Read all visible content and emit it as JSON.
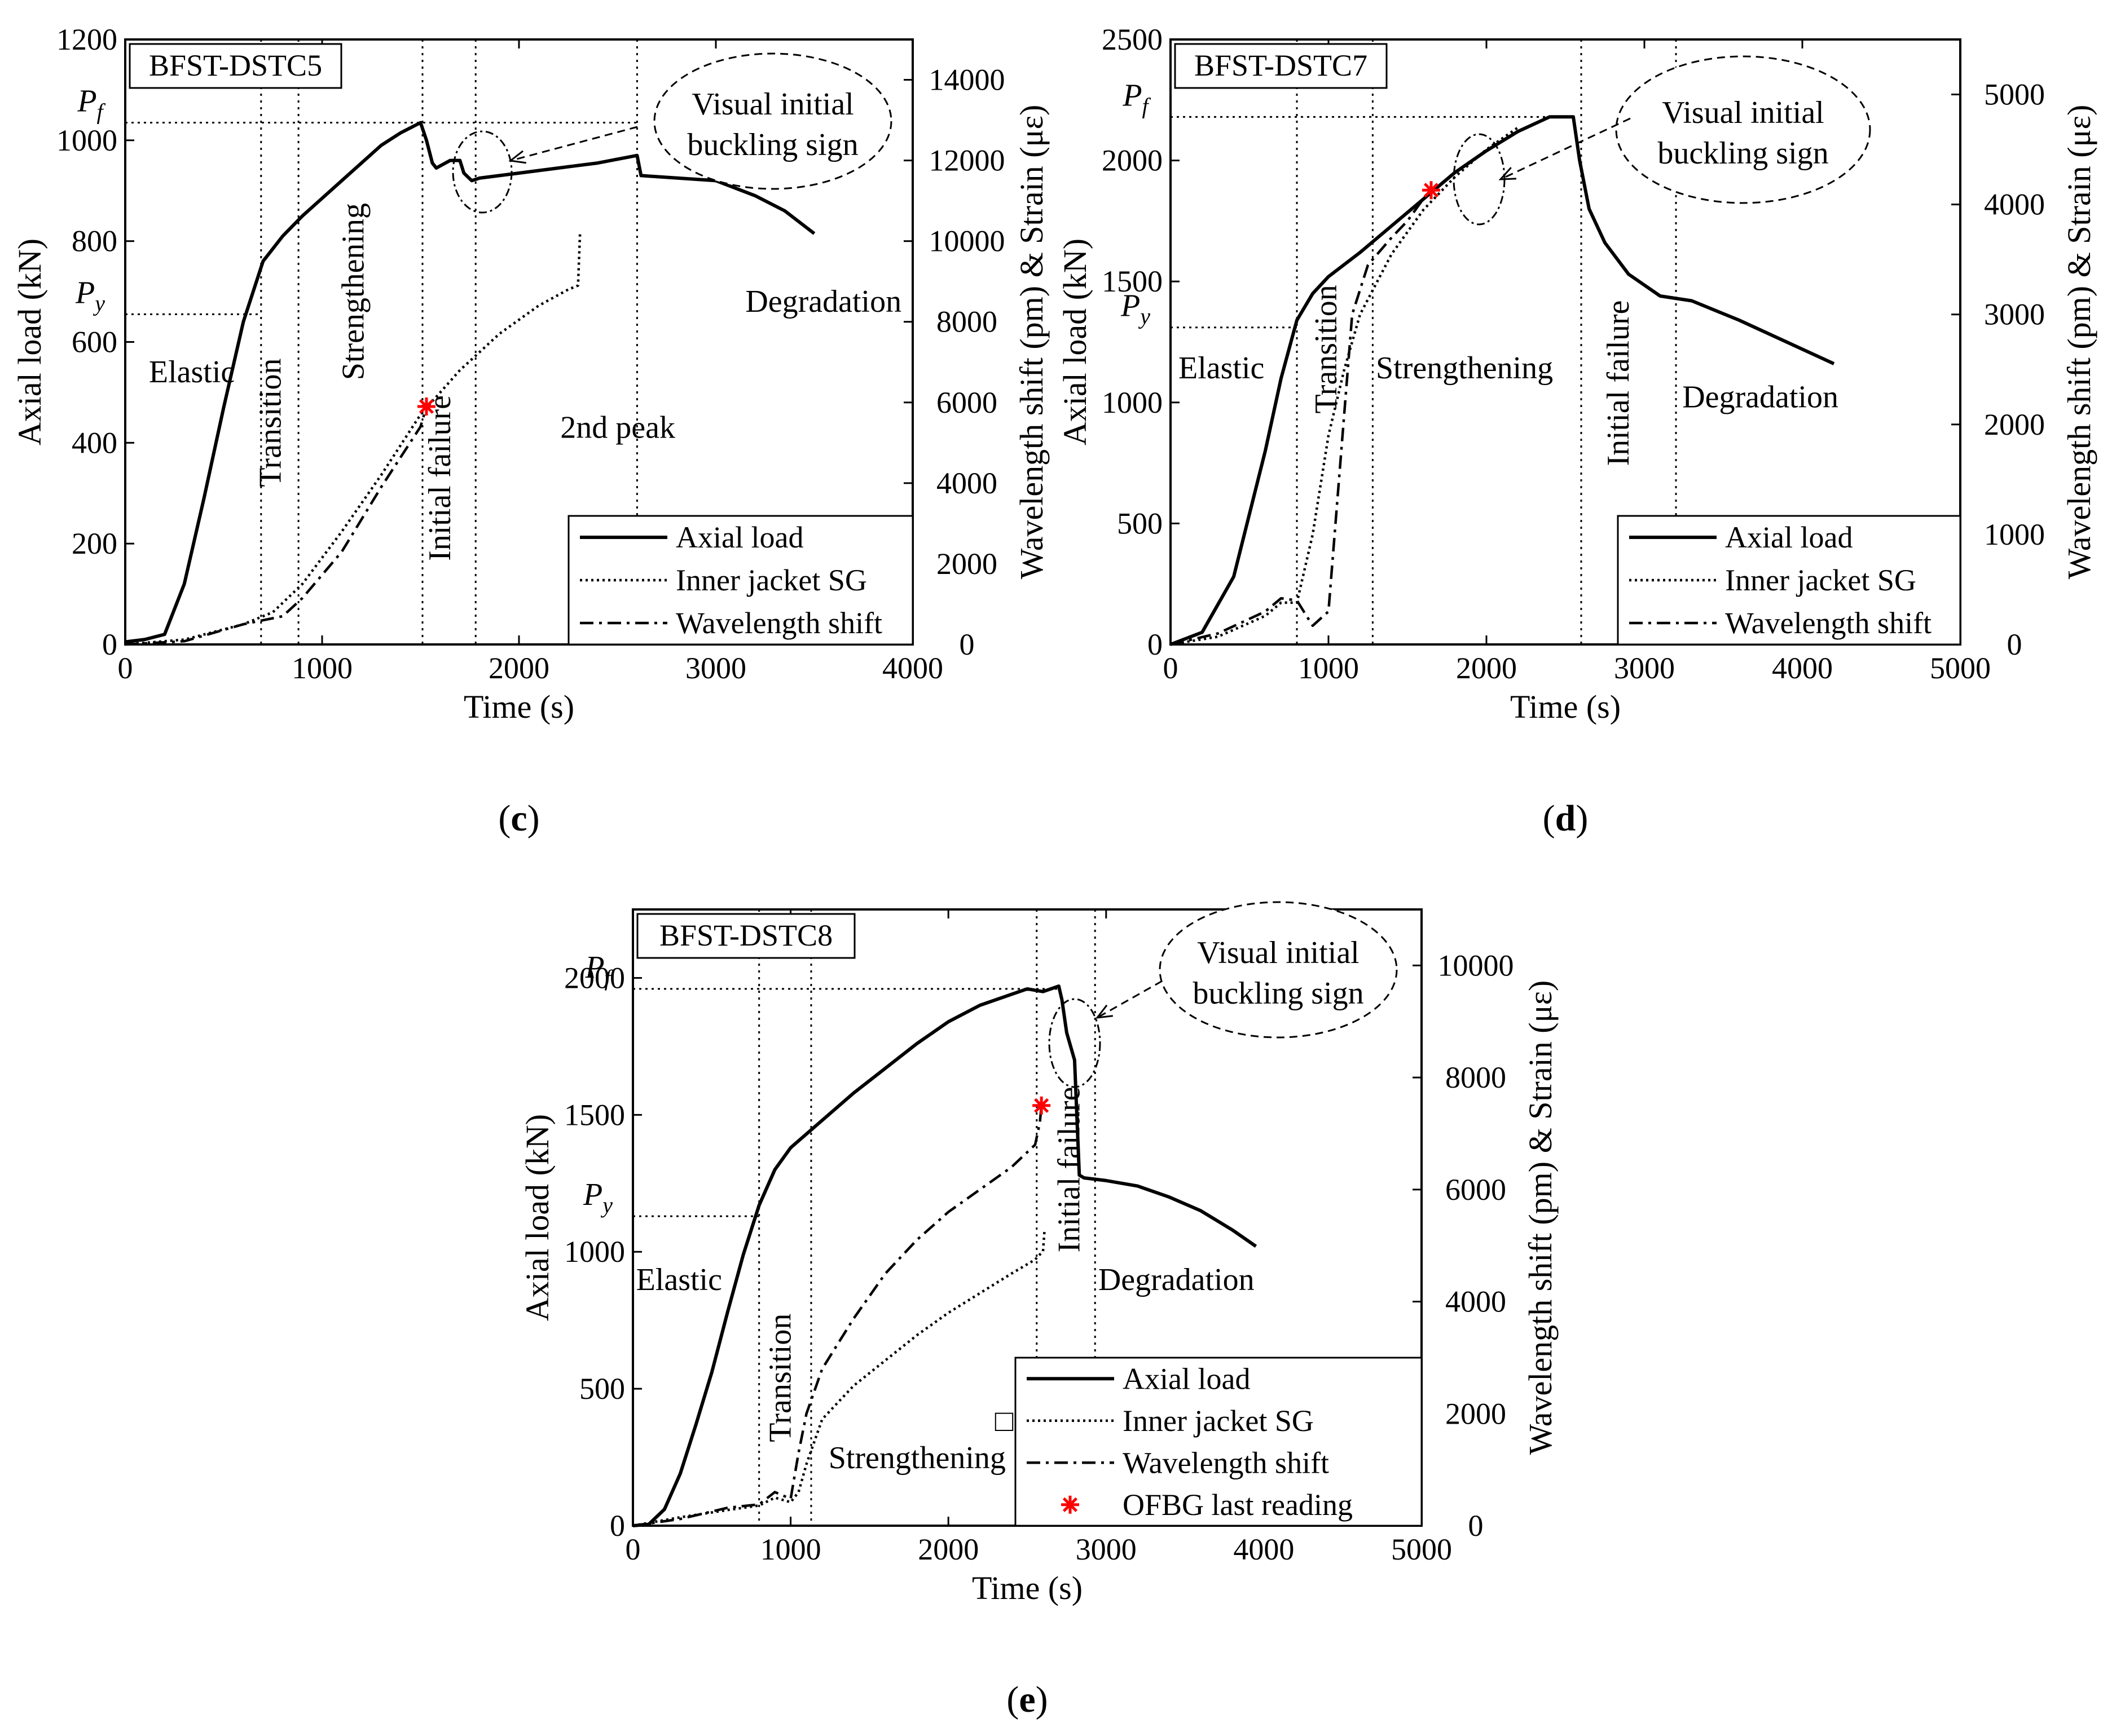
{
  "chart_data": [
    {
      "type": "line",
      "panel_label": "(c)",
      "specimen": "BFST-DSTC5",
      "xlabel": "Time (s)",
      "ylabel": "Axial load (kN)",
      "y2label": "Wavelength shift (pm) & Strain (με)",
      "xlim": [
        0,
        4000
      ],
      "ylim": [
        0,
        1200
      ],
      "y2lim": [
        0,
        15000
      ],
      "x_ticks": [
        0,
        1000,
        2000,
        3000,
        4000
      ],
      "y_ticks": [
        0,
        200,
        400,
        600,
        800,
        1000,
        1200
      ],
      "y2_ticks": [
        0,
        2000,
        4000,
        6000,
        8000,
        10000,
        12000,
        14000
      ],
      "x_tick_labels": [
        "0",
        "1000",
        "2000",
        "3000",
        "4000"
      ],
      "y_tick_labels": [
        "0",
        "200",
        "400",
        "600",
        "800",
        "1000",
        "1200"
      ],
      "y2_tick_labels": [
        "0",
        "2000",
        "4000",
        "6000",
        "8000",
        "10000",
        "12000",
        "14000"
      ],
      "Pf": 1035,
      "Py": 655,
      "Pf_label": "P",
      "Pf_sub": "f",
      "Py_label": "P",
      "Py_sub": "y",
      "Pf_line_end": 2600,
      "Py_line_end": 690,
      "phase_lines": [
        690,
        880,
        1510,
        1780,
        2600
      ],
      "phase_labels": [
        {
          "text": "Elastic",
          "x": 120,
          "y": 520,
          "rotate": false
        },
        {
          "text": "Transition",
          "x": 790,
          "y": 440,
          "rotate": true
        },
        {
          "text": "Strengthening",
          "x": 1210,
          "y": 700,
          "rotate": true
        },
        {
          "text": "Initial failure",
          "x": 1650,
          "y": 330,
          "rotate": true
        },
        {
          "text": "2nd peak",
          "x": 2210,
          "y": 410,
          "rotate": false
        },
        {
          "text": "Degradation",
          "x": 3150,
          "y": 660,
          "rotate": false
        }
      ],
      "annotation": "Visual initial buckling sign",
      "annotation_lines": [
        "Visual initial",
        "buckling sign"
      ],
      "series": [
        {
          "name": "Axial load",
          "axis": "left",
          "style": "solid",
          "x": [
            0,
            100,
            200,
            300,
            400,
            500,
            600,
            700,
            800,
            900,
            1000,
            1100,
            1200,
            1300,
            1400,
            1500,
            1530,
            1560,
            1580,
            1650,
            1700,
            1720,
            1760,
            1800,
            2000,
            2200,
            2400,
            2600,
            2620,
            3000,
            3200,
            3350,
            3500
          ],
          "y": [
            5,
            10,
            20,
            120,
            290,
            470,
            640,
            760,
            810,
            850,
            885,
            920,
            955,
            990,
            1015,
            1035,
            1000,
            955,
            945,
            960,
            960,
            935,
            920,
            925,
            935,
            945,
            955,
            970,
            930,
            920,
            890,
            860,
            815
          ]
        },
        {
          "name": "Inner jacket SG",
          "axis": "right",
          "style": "dotted",
          "x": [
            0,
            300,
            600,
            750,
            900,
            1100,
            1300,
            1500,
            1700,
            1900,
            2100,
            2250,
            2300,
            2310
          ],
          "y": [
            0,
            120,
            500,
            800,
            1500,
            2800,
            4200,
            5700,
            6800,
            7700,
            8400,
            8800,
            8900,
            10200
          ]
        },
        {
          "name": "Wavelength shift",
          "axis": "right",
          "style": "dashdot",
          "x": [
            0,
            300,
            600,
            750,
            800,
            900,
            1100,
            1300,
            1500,
            1530
          ],
          "y": [
            0,
            80,
            500,
            650,
            700,
            1150,
            2300,
            3900,
            5400,
            5900
          ]
        }
      ],
      "markers": [
        {
          "name": "OFBG last reading",
          "x": 1530,
          "y": 5900,
          "axis": "right"
        }
      ],
      "legend": [
        "Axial load",
        "Inner jacket SG",
        "Wavelength shift"
      ]
    },
    {
      "type": "line",
      "panel_label": "(d)",
      "specimen": "BFST-DSTC7",
      "xlabel": "Time (s)",
      "ylabel": "Axial load (kN)",
      "y2label": "Wavelength shift (pm) & Strain (με)",
      "xlim": [
        0,
        5000
      ],
      "ylim": [
        0,
        2500
      ],
      "y2lim": [
        0,
        5500
      ],
      "x_ticks": [
        0,
        1000,
        2000,
        3000,
        4000,
        5000
      ],
      "y_ticks": [
        0,
        500,
        1000,
        1500,
        2000,
        2500
      ],
      "y2_ticks": [
        0,
        1000,
        2000,
        3000,
        4000,
        5000
      ],
      "x_tick_labels": [
        "0",
        "1000",
        "2000",
        "3000",
        "4000",
        "5000"
      ],
      "y_tick_labels": [
        "0",
        "500",
        "1000",
        "1500",
        "2000",
        "2500"
      ],
      "y2_tick_labels": [
        "0",
        "1000",
        "2000",
        "3000",
        "4000",
        "5000"
      ],
      "Pf": 2180,
      "Py": 1310,
      "Pf_label": "P",
      "Pf_sub": "f",
      "Py_label": "P",
      "Py_sub": "y",
      "Pf_line_end": 2480,
      "Py_line_end": 800,
      "phase_lines": [
        800,
        1280,
        2600,
        3200
      ],
      "phase_labels": [
        {
          "text": "Elastic",
          "x": 50,
          "y": 1100,
          "rotate": false
        },
        {
          "text": "Transition",
          "x": 1050,
          "y": 1220,
          "rotate": true
        },
        {
          "text": "Strengthening",
          "x": 1300,
          "y": 1100,
          "rotate": false
        },
        {
          "text": "Initial failure",
          "x": 2900,
          "y": 1080,
          "rotate": true
        },
        {
          "text": "Degradation",
          "x": 3240,
          "y": 980,
          "rotate": false
        }
      ],
      "annotation": "Visual initial buckling sign",
      "annotation_lines": [
        "Visual initial",
        "buckling sign"
      ],
      "series": [
        {
          "name": "Axial load",
          "axis": "left",
          "style": "solid",
          "x": [
            0,
            200,
            400,
            600,
            700,
            800,
            900,
            1000,
            1200,
            1400,
            1600,
            1800,
            2000,
            2200,
            2400,
            2480,
            2550,
            2590,
            2650,
            2750,
            2900,
            3100,
            3300,
            3600,
            3900,
            4200
          ],
          "y": [
            0,
            50,
            280,
            800,
            1100,
            1340,
            1450,
            1520,
            1620,
            1730,
            1840,
            1950,
            2040,
            2120,
            2180,
            2180,
            2180,
            2000,
            1800,
            1660,
            1530,
            1440,
            1420,
            1340,
            1250,
            1160
          ]
        },
        {
          "name": "Inner jacket SG",
          "axis": "right",
          "style": "dotted",
          "x": [
            0,
            300,
            600,
            700,
            800,
            900,
            1000,
            1100,
            1200,
            1400,
            1600,
            1800,
            2000,
            2200
          ],
          "y": [
            0,
            70,
            260,
            380,
            380,
            1000,
            1900,
            2500,
            3000,
            3550,
            3950,
            4250,
            4500,
            4700
          ]
        },
        {
          "name": "Wavelength shift",
          "axis": "right",
          "style": "dashdot",
          "x": [
            0,
            300,
            600,
            700,
            800,
            900,
            1000,
            1050,
            1100,
            1150,
            1250,
            1400,
            1500,
            1600,
            1650
          ],
          "y": [
            0,
            100,
            300,
            420,
            400,
            170,
            300,
            1200,
            2100,
            3000,
            3450,
            3700,
            3850,
            4050,
            4130
          ]
        }
      ],
      "markers": [
        {
          "name": "OFBG last reading",
          "x": 1650,
          "y": 4130,
          "axis": "right"
        }
      ],
      "legend": [
        "Axial load",
        "Inner jacket SG",
        "Wavelength shift"
      ]
    },
    {
      "type": "line",
      "panel_label": "(e)",
      "specimen": "BFST-DSTC8",
      "xlabel": "Time (s)",
      "ylabel": "Axial load (kN)",
      "y2label": "Wavelength shift (pm) & Strain (με)",
      "xlim": [
        0,
        5000
      ],
      "ylim": [
        0,
        2250
      ],
      "y2lim": [
        0,
        11000
      ],
      "x_ticks": [
        0,
        1000,
        2000,
        3000,
        4000,
        5000
      ],
      "y_ticks": [
        0,
        500,
        1000,
        1500,
        2000
      ],
      "y2_ticks": [
        0,
        2000,
        4000,
        6000,
        8000,
        10000
      ],
      "x_tick_labels": [
        "0",
        "1000",
        "2000",
        "3000",
        "4000",
        "5000"
      ],
      "y_tick_labels": [
        "0",
        "500",
        "1000",
        "1500",
        "2000"
      ],
      "y2_tick_labels": [
        "0",
        "2000",
        "4000",
        "6000",
        "8000",
        "10000"
      ],
      "Pf": 1960,
      "Py": 1130,
      "Pf_label": "P",
      "Pf_sub": "f",
      "Py_label": "P",
      "Py_sub": "y",
      "Pf_line_end": 2700,
      "Py_line_end": 800,
      "phase_lines": [
        800,
        1130,
        2560,
        2930
      ],
      "phase_labels": [
        {
          "text": "Elastic",
          "x": 20,
          "y": 860,
          "rotate": false
        },
        {
          "text": "Transition",
          "x": 1000,
          "y": 540,
          "rotate": true
        },
        {
          "text": "Strengthening",
          "x": 1240,
          "y": 210,
          "rotate": false
        },
        {
          "text": "Initial failure",
          "x": 2830,
          "y": 1300,
          "rotate": true
        },
        {
          "text": "Degradation",
          "x": 2950,
          "y": 860,
          "rotate": false
        }
      ],
      "annotation": "Visual initial buckling sign",
      "annotation_lines": [
        "Visual initial",
        "buckling sign"
      ],
      "series": [
        {
          "name": "Axial load",
          "axis": "left",
          "style": "solid",
          "x": [
            0,
            100,
            200,
            300,
            400,
            500,
            600,
            700,
            800,
            900,
            1000,
            1200,
            1400,
            1600,
            1800,
            2000,
            2200,
            2400,
            2500,
            2600,
            2700,
            2720,
            2750,
            2800,
            2830,
            2860,
            3000,
            3200,
            3400,
            3600,
            3800,
            3950
          ],
          "y": [
            0,
            5,
            60,
            190,
            370,
            560,
            780,
            990,
            1170,
            1300,
            1380,
            1480,
            1580,
            1670,
            1760,
            1840,
            1900,
            1940,
            1960,
            1950,
            1970,
            1920,
            1800,
            1700,
            1280,
            1270,
            1260,
            1240,
            1200,
            1150,
            1080,
            1020
          ]
        },
        {
          "name": "Inner jacket SG",
          "axis": "right",
          "style": "dotted",
          "x": [
            0,
            300,
            600,
            800,
            900,
            1000,
            1050,
            1100,
            1200,
            1400,
            1600,
            1800,
            2000,
            2200,
            2400,
            2550,
            2600,
            2610
          ],
          "y": [
            0,
            150,
            280,
            360,
            500,
            420,
            600,
            1100,
            1900,
            2500,
            2950,
            3400,
            3800,
            4150,
            4500,
            4750,
            4900,
            5300
          ]
        },
        {
          "name": "Wavelength shift",
          "axis": "right",
          "style": "dashdot",
          "x": [
            0,
            300,
            600,
            800,
            900,
            1000,
            1050,
            1100,
            1200,
            1400,
            1600,
            1800,
            2000,
            2200,
            2400,
            2550,
            2580,
            2590
          ],
          "y": [
            0,
            120,
            320,
            380,
            600,
            480,
            1300,
            2000,
            2800,
            3700,
            4500,
            5100,
            5600,
            6000,
            6400,
            6800,
            7200,
            7500
          ]
        }
      ],
      "markers": [
        {
          "name": "OFBG last reading",
          "x": 2590,
          "y": 7500,
          "axis": "right"
        }
      ],
      "legend": [
        "Axial load",
        "Inner jacket SG",
        "Wavelength shift",
        "OFBG last reading"
      ],
      "stray_glyph": "□"
    }
  ]
}
